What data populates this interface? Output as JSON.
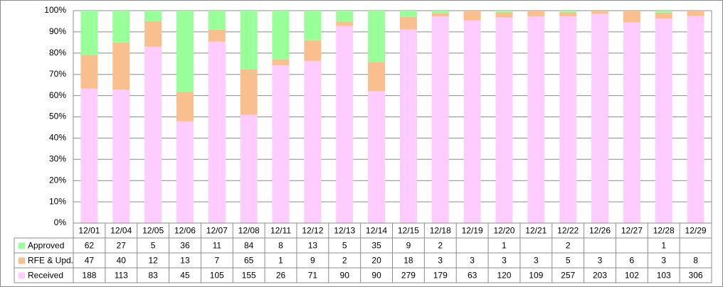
{
  "chart_data": {
    "type": "bar",
    "stacked": true,
    "normalized": true,
    "categories": [
      "12/01",
      "12/04",
      "12/05",
      "12/06",
      "12/07",
      "12/08",
      "12/11",
      "12/12",
      "12/13",
      "12/14",
      "12/15",
      "12/18",
      "12/19",
      "12/20",
      "12/21",
      "12/22",
      "12/26",
      "12/27",
      "12/28",
      "12/29"
    ],
    "series": [
      {
        "name": "Received",
        "color": "#ffccff",
        "values": [
          188,
          113,
          83,
          45,
          105,
          155,
          26,
          71,
          90,
          90,
          279,
          179,
          63,
          120,
          109,
          257,
          203,
          102,
          103,
          306
        ]
      },
      {
        "name": "RFE & Upd.",
        "color": "#fabf8f",
        "values": [
          47,
          40,
          12,
          13,
          7,
          65,
          1,
          9,
          2,
          20,
          18,
          3,
          3,
          3,
          3,
          5,
          3,
          6,
          3,
          8
        ]
      },
      {
        "name": "Approved",
        "color": "#99ff99",
        "values": [
          62,
          27,
          5,
          36,
          11,
          84,
          8,
          13,
          5,
          35,
          9,
          2,
          null,
          1,
          null,
          2,
          null,
          null,
          1,
          null
        ]
      }
    ],
    "ytick_labels": [
      "0%",
      "10%",
      "20%",
      "30%",
      "40%",
      "50%",
      "60%",
      "70%",
      "80%",
      "90%",
      "100%"
    ],
    "ylim": [
      0,
      100
    ],
    "grid": true,
    "legend": "data-table-below",
    "table_row_order": [
      "Approved",
      "RFE & Upd.",
      "Received"
    ]
  }
}
